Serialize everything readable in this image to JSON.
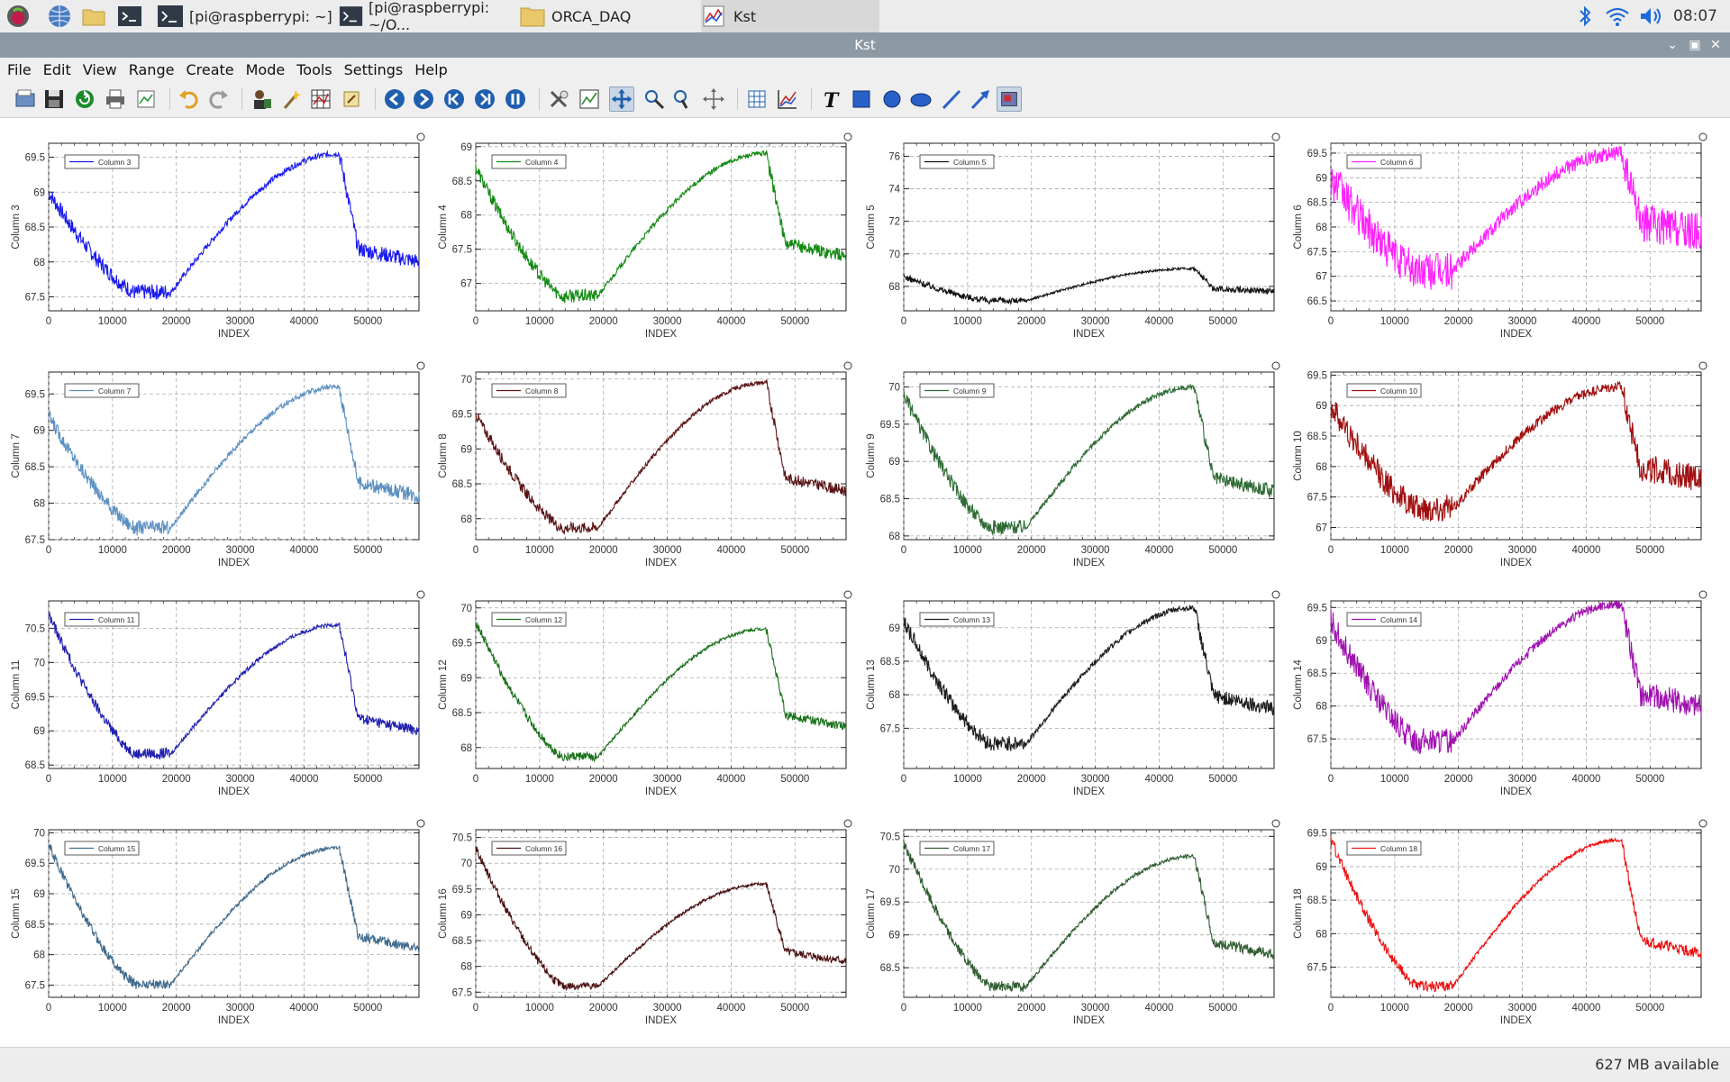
{
  "taskbar": {
    "tasks": [
      {
        "label": "[pi@raspberrypi: ~]",
        "icon": "terminal-icon"
      },
      {
        "label": "[pi@raspberrypi: ~/O...",
        "icon": "terminal-icon"
      },
      {
        "label": "ORCA_DAQ",
        "icon": "folder-icon"
      },
      {
        "label": "Kst",
        "icon": "kst-icon"
      }
    ],
    "clock": "08:07"
  },
  "window": {
    "title": "Kst"
  },
  "menu": [
    "File",
    "Edit",
    "View",
    "Range",
    "Create",
    "Mode",
    "Tools",
    "Settings",
    "Help"
  ],
  "status": {
    "memory": "627 MB available"
  },
  "plots": [
    {
      "legend": "Column 3",
      "ylabel": "Column 3",
      "color": "#1a1aee",
      "ylim": [
        67.3,
        69.7
      ],
      "yticks": [
        "67.5",
        "68",
        "68.5",
        "69",
        "69.5"
      ],
      "yvals": [
        67.5,
        68,
        68.5,
        69,
        69.5
      ],
      "shape": {
        "a": 69.0,
        "mn": 67.55,
        "mx": 69.55,
        "e": 68.0,
        "n": 0.07
      }
    },
    {
      "legend": "Column 4",
      "ylabel": "Column 4",
      "color": "#138a13",
      "ylim": [
        66.6,
        69.05
      ],
      "yticks": [
        "67",
        "67.5",
        "68",
        "68.5",
        "69"
      ],
      "yvals": [
        67,
        67.5,
        68,
        68.5,
        69
      ],
      "shape": {
        "a": 68.7,
        "mn": 66.8,
        "mx": 68.9,
        "e": 67.4,
        "n": 0.06
      }
    },
    {
      "legend": "Column 5",
      "ylabel": "Column 5",
      "color": "#111111",
      "ylim": [
        66.5,
        76.8
      ],
      "yticks": [
        "68",
        "70",
        "72",
        "74",
        "76"
      ],
      "yvals": [
        68,
        70,
        72,
        74,
        76
      ],
      "shape": {
        "a": 68.6,
        "mn": 67.1,
        "mx": 69.1,
        "e": 67.7,
        "n": 0.12
      }
    },
    {
      "legend": "Column 6",
      "ylabel": "Column 6",
      "color": "#ff22ff",
      "ylim": [
        66.3,
        69.7
      ],
      "yticks": [
        "66.5",
        "67",
        "67.5",
        "68",
        "68.5",
        "69",
        "69.5"
      ],
      "yvals": [
        66.5,
        67,
        67.5,
        68,
        68.5,
        69,
        69.5
      ],
      "shape": {
        "a": 69.0,
        "mn": 67.1,
        "mx": 69.5,
        "e": 67.9,
        "n": 0.25
      }
    },
    {
      "legend": "Column 7",
      "ylabel": "Column 7",
      "color": "#5b8fc2",
      "ylim": [
        67.5,
        69.8
      ],
      "yticks": [
        "67.5",
        "68",
        "68.5",
        "69",
        "69.5"
      ],
      "yvals": [
        67.5,
        68,
        68.5,
        69,
        69.5
      ],
      "shape": {
        "a": 69.2,
        "mn": 67.65,
        "mx": 69.6,
        "e": 68.1,
        "n": 0.06
      }
    },
    {
      "legend": "Column 8",
      "ylabel": "Column 8",
      "color": "#5a1414",
      "ylim": [
        67.7,
        70.1
      ],
      "yticks": [
        "68",
        "68.5",
        "69",
        "69.5",
        "70"
      ],
      "yvals": [
        68,
        68.5,
        69,
        69.5,
        70
      ],
      "shape": {
        "a": 69.5,
        "mn": 67.85,
        "mx": 69.95,
        "e": 68.4,
        "n": 0.05
      }
    },
    {
      "legend": "Column 9",
      "ylabel": "Column 9",
      "color": "#2e6b34",
      "ylim": [
        67.95,
        70.2
      ],
      "yticks": [
        "68",
        "68.5",
        "69",
        "69.5",
        "70"
      ],
      "yvals": [
        68,
        68.5,
        69,
        69.5,
        70
      ],
      "shape": {
        "a": 69.9,
        "mn": 68.1,
        "mx": 70.0,
        "e": 68.6,
        "n": 0.06
      }
    },
    {
      "legend": "Column 10",
      "ylabel": "Column 10",
      "color": "#a01010",
      "ylim": [
        66.8,
        69.55
      ],
      "yticks": [
        "67",
        "67.5",
        "68",
        "68.5",
        "69",
        "69.5"
      ],
      "yvals": [
        67,
        67.5,
        68,
        68.5,
        69,
        69.5
      ],
      "shape": {
        "a": 69.0,
        "mn": 67.3,
        "mx": 69.3,
        "e": 67.8,
        "n": 0.14
      }
    },
    {
      "legend": "Column 11",
      "ylabel": "Column 11",
      "color": "#2020b0",
      "ylim": [
        68.45,
        70.9
      ],
      "yticks": [
        "68.5",
        "69",
        "69.5",
        "70",
        "70.5"
      ],
      "yvals": [
        68.5,
        69,
        69.5,
        70,
        70.5
      ],
      "shape": {
        "a": 70.7,
        "mn": 68.65,
        "mx": 70.55,
        "e": 69.0,
        "n": 0.05
      }
    },
    {
      "legend": "Column 12",
      "ylabel": "Column 12",
      "color": "#187018",
      "ylim": [
        67.7,
        70.1
      ],
      "yticks": [
        "68",
        "68.5",
        "69",
        "69.5",
        "70"
      ],
      "yvals": [
        68,
        68.5,
        69,
        69.5,
        70
      ],
      "shape": {
        "a": 69.8,
        "mn": 67.85,
        "mx": 69.7,
        "e": 68.3,
        "n": 0.04
      }
    },
    {
      "legend": "Column 13",
      "ylabel": "Column 13",
      "color": "#1e1e1e",
      "ylim": [
        66.9,
        69.4
      ],
      "yticks": [
        "67.5",
        "68",
        "68.5",
        "69"
      ],
      "yvals": [
        67.5,
        68,
        68.5,
        69
      ],
      "shape": {
        "a": 69.1,
        "mn": 67.25,
        "mx": 69.3,
        "e": 67.8,
        "n": 0.07
      }
    },
    {
      "legend": "Column 14",
      "ylabel": "Column 14",
      "color": "#a012b0",
      "ylim": [
        67.05,
        69.6
      ],
      "yticks": [
        "67.5",
        "68",
        "68.5",
        "69",
        "69.5"
      ],
      "yvals": [
        67.5,
        68,
        68.5,
        69,
        69.5
      ],
      "shape": {
        "a": 69.3,
        "mn": 67.45,
        "mx": 69.55,
        "e": 68.0,
        "n": 0.12
      }
    },
    {
      "legend": "Column 15",
      "ylabel": "Column 15",
      "color": "#3f6a8c",
      "ylim": [
        67.3,
        70.05
      ],
      "yticks": [
        "67.5",
        "68",
        "68.5",
        "69",
        "69.5",
        "70"
      ],
      "yvals": [
        67.5,
        68,
        68.5,
        69,
        69.5,
        70
      ],
      "shape": {
        "a": 69.8,
        "mn": 67.5,
        "mx": 69.75,
        "e": 68.1,
        "n": 0.05
      }
    },
    {
      "legend": "Column 16",
      "ylabel": "Column 16",
      "color": "#4a1010",
      "ylim": [
        67.4,
        70.65
      ],
      "yticks": [
        "67.5",
        "68",
        "68.5",
        "69",
        "69.5",
        "70",
        "70.5"
      ],
      "yvals": [
        67.5,
        68,
        68.5,
        69,
        69.5,
        70,
        70.5
      ],
      "shape": {
        "a": 70.3,
        "mn": 67.6,
        "mx": 69.6,
        "e": 68.1,
        "n": 0.05
      }
    },
    {
      "legend": "Column 17",
      "ylabel": "Column 17",
      "color": "#2f5c30",
      "ylim": [
        68.05,
        70.6
      ],
      "yticks": [
        "68.5",
        "69",
        "69.5",
        "70",
        "70.5"
      ],
      "yvals": [
        68.5,
        69,
        69.5,
        70,
        70.5
      ],
      "shape": {
        "a": 70.4,
        "mn": 68.2,
        "mx": 70.2,
        "e": 68.7,
        "n": 0.05
      }
    },
    {
      "legend": "Column 18",
      "ylabel": "Column 18",
      "color": "#ee1111",
      "ylim": [
        67.05,
        69.55
      ],
      "yticks": [
        "67.5",
        "68",
        "68.5",
        "69",
        "69.5"
      ],
      "yvals": [
        67.5,
        68,
        68.5,
        69,
        69.5
      ],
      "shape": {
        "a": 69.4,
        "mn": 67.2,
        "mx": 69.4,
        "e": 67.7,
        "n": 0.05
      }
    }
  ],
  "axis": {
    "xlabel": "INDEX",
    "xticks": [
      "0",
      "10000",
      "20000",
      "30000",
      "40000",
      "50000"
    ],
    "xvals": [
      0,
      10000,
      20000,
      30000,
      40000,
      50000
    ],
    "xlim": [
      0,
      58000
    ]
  }
}
